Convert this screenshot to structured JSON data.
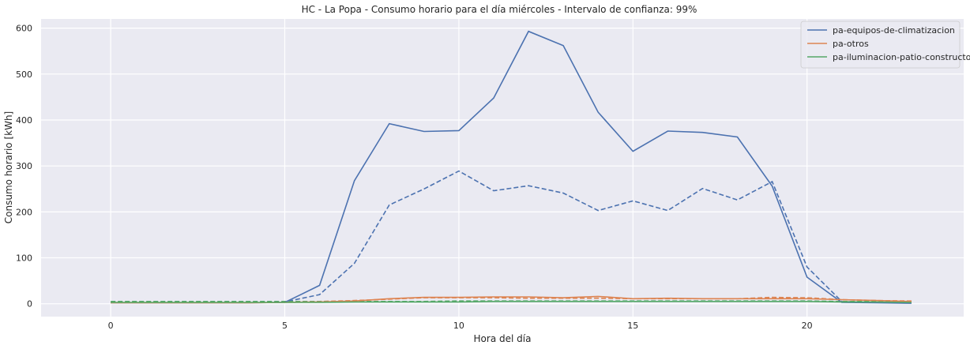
{
  "chart_data": {
    "type": "line",
    "title": "HC - La Popa - Consumo horario para el día miércoles - Intervalo de confianza: 99%",
    "xlabel": "Hora del día",
    "ylabel": "Consumo horario [kWh]",
    "xlim": [
      -2,
      24.5
    ],
    "ylim": [
      -28,
      620
    ],
    "xticks": [
      0,
      5,
      10,
      15,
      20
    ],
    "yticks": [
      0,
      100,
      200,
      300,
      400,
      500,
      600
    ],
    "grid": true,
    "legend_position": "top-right",
    "x": [
      0,
      1,
      2,
      3,
      4,
      5,
      6,
      7,
      8,
      9,
      10,
      11,
      12,
      13,
      14,
      15,
      16,
      17,
      18,
      19,
      20,
      21,
      22,
      23
    ],
    "series": [
      {
        "name": "pa-equipos-de-climatizacion",
        "color": "#4c72b0",
        "style": "solid",
        "values": [
          2,
          2,
          2,
          2,
          2,
          3,
          40,
          268,
          392,
          375,
          377,
          448,
          593,
          562,
          417,
          332,
          376,
          373,
          363,
          256,
          58,
          3,
          2,
          1
        ]
      },
      {
        "name": "pa-otros",
        "color": "#dd8452",
        "style": "solid",
        "values": [
          2,
          2,
          2,
          2,
          2,
          3,
          4,
          6,
          11,
          14,
          14,
          15,
          15,
          13,
          16,
          11,
          12,
          11,
          11,
          11,
          11,
          9,
          7,
          5
        ]
      },
      {
        "name": "pa-iluminacion-patio-constructor",
        "color": "#55a868",
        "style": "solid",
        "values": [
          3,
          3,
          3,
          3,
          3,
          3,
          3,
          4,
          4,
          4,
          4,
          5,
          5,
          5,
          5,
          5,
          5,
          5,
          5,
          5,
          5,
          4,
          4,
          3
        ]
      }
    ],
    "reference_series": [
      {
        "color": "#4c72b0",
        "style": "dashed",
        "values": [
          3,
          3,
          3,
          3,
          3,
          4,
          20,
          88,
          215,
          250,
          289,
          246,
          257,
          241,
          203,
          224,
          203,
          251,
          226,
          266,
          80,
          5,
          3,
          2
        ]
      },
      {
        "color": "#dd8452",
        "style": "dashed",
        "values": [
          4,
          4,
          4,
          4,
          4,
          4,
          5,
          7,
          10,
          13,
          13,
          13,
          12,
          12,
          12,
          11,
          11,
          11,
          11,
          14,
          13,
          9,
          7,
          6
        ]
      },
      {
        "color": "#55a868",
        "style": "dashed",
        "values": [
          5,
          5,
          5,
          5,
          5,
          5,
          5,
          5,
          5,
          5,
          6,
          6,
          6,
          6,
          6,
          6,
          6,
          6,
          6,
          6,
          6,
          5,
          5,
          5
        ]
      }
    ]
  }
}
